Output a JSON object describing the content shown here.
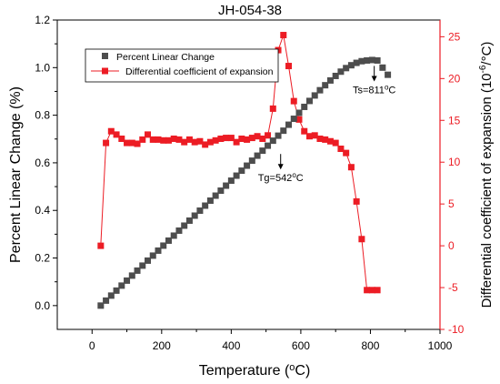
{
  "chart_data": {
    "type": "scatter",
    "title": "JH-054-38",
    "xlabel": "Temperature (°C)",
    "xlabel_pre": "Temperature (",
    "xlabel_unit": "°C)",
    "ylabel": "Percent Linear Change (%)",
    "y2label": "Differential coefficient of expansion (10⁻⁶/°C)",
    "y2label_pre": "Differential coefficient of expansion (10",
    "y2label_exp": "-6",
    "y2label_post": "/°C)",
    "xlim": [
      -100,
      1000
    ],
    "ylim": [
      -0.1,
      1.2
    ],
    "y2lim": [
      -10,
      27
    ],
    "x_ticks": [
      "0",
      "200",
      "400",
      "600",
      "800",
      "1000"
    ],
    "y_ticks": [
      "0.0",
      "0.2",
      "0.4",
      "0.6",
      "0.8",
      "1.0",
      "1.2"
    ],
    "y2_ticks": [
      "-10",
      "-5",
      "0",
      "5",
      "10",
      "15",
      "20",
      "25"
    ],
    "legend_position": "top-left",
    "colors": {
      "series1": "#4d4d4d",
      "series2": "#ec1c24",
      "axis": "#000000",
      "axis2": "#ec1c24"
    },
    "series": [
      {
        "name": "Percent Linear Change",
        "axis": "left",
        "line": false,
        "x": [
          25,
          40,
          55,
          70,
          85,
          100,
          115,
          130,
          145,
          160,
          175,
          190,
          205,
          220,
          235,
          250,
          265,
          280,
          295,
          310,
          325,
          340,
          355,
          370,
          385,
          400,
          415,
          430,
          445,
          460,
          475,
          490,
          505,
          520,
          535,
          550,
          565,
          580,
          595,
          610,
          625,
          640,
          655,
          670,
          685,
          700,
          715,
          730,
          745,
          760,
          775,
          790,
          805,
          820,
          835,
          850
        ],
        "values": [
          0.0,
          0.021,
          0.042,
          0.063,
          0.084,
          0.105,
          0.126,
          0.147,
          0.168,
          0.189,
          0.21,
          0.231,
          0.252,
          0.273,
          0.294,
          0.315,
          0.336,
          0.357,
          0.378,
          0.399,
          0.42,
          0.441,
          0.462,
          0.483,
          0.504,
          0.525,
          0.546,
          0.567,
          0.588,
          0.609,
          0.63,
          0.651,
          0.672,
          0.693,
          0.714,
          0.735,
          0.76,
          0.785,
          0.81,
          0.835,
          0.86,
          0.883,
          0.905,
          0.926,
          0.946,
          0.965,
          0.983,
          0.998,
          1.01,
          1.02,
          1.027,
          1.03,
          1.032,
          1.03,
          1.0,
          0.97
        ]
      },
      {
        "name": "Differential coefficient of expansion",
        "axis": "right",
        "line": true,
        "x": [
          25,
          40,
          55,
          70,
          85,
          100,
          115,
          130,
          145,
          160,
          175,
          190,
          205,
          220,
          235,
          250,
          265,
          280,
          295,
          310,
          325,
          340,
          355,
          370,
          385,
          400,
          415,
          430,
          445,
          460,
          475,
          490,
          505,
          520,
          535,
          550,
          565,
          580,
          595,
          610,
          625,
          640,
          655,
          670,
          685,
          700,
          715,
          730,
          745,
          760,
          775,
          790,
          805,
          820
        ],
        "values": [
          0,
          12.3,
          13.7,
          13.3,
          12.8,
          12.3,
          12.3,
          12.2,
          12.7,
          13.3,
          12.7,
          12.7,
          12.6,
          12.6,
          12.8,
          12.7,
          12.4,
          12.7,
          12.4,
          12.5,
          12.1,
          12.4,
          12.6,
          12.8,
          12.9,
          12.9,
          12.4,
          12.8,
          12.7,
          12.9,
          13.1,
          12.8,
          13.2,
          16.4,
          23.4,
          25.2,
          21.5,
          17.3,
          15.1,
          13.7,
          13.1,
          13.2,
          12.8,
          12.7,
          12.5,
          12.3,
          11.6,
          11.1,
          9.4,
          5.3,
          0.8,
          -5.3,
          -5.3,
          -5.3
        ]
      }
    ],
    "annotations": [
      {
        "text": "Tg=542°C",
        "pre": "Tg=542",
        "post": "C",
        "x": 542,
        "y": 0.66,
        "axis": "left"
      },
      {
        "text": "Ts=811°C",
        "pre": "Ts=811",
        "post": "C",
        "x": 811,
        "y": 1.03,
        "axis": "left"
      }
    ]
  }
}
